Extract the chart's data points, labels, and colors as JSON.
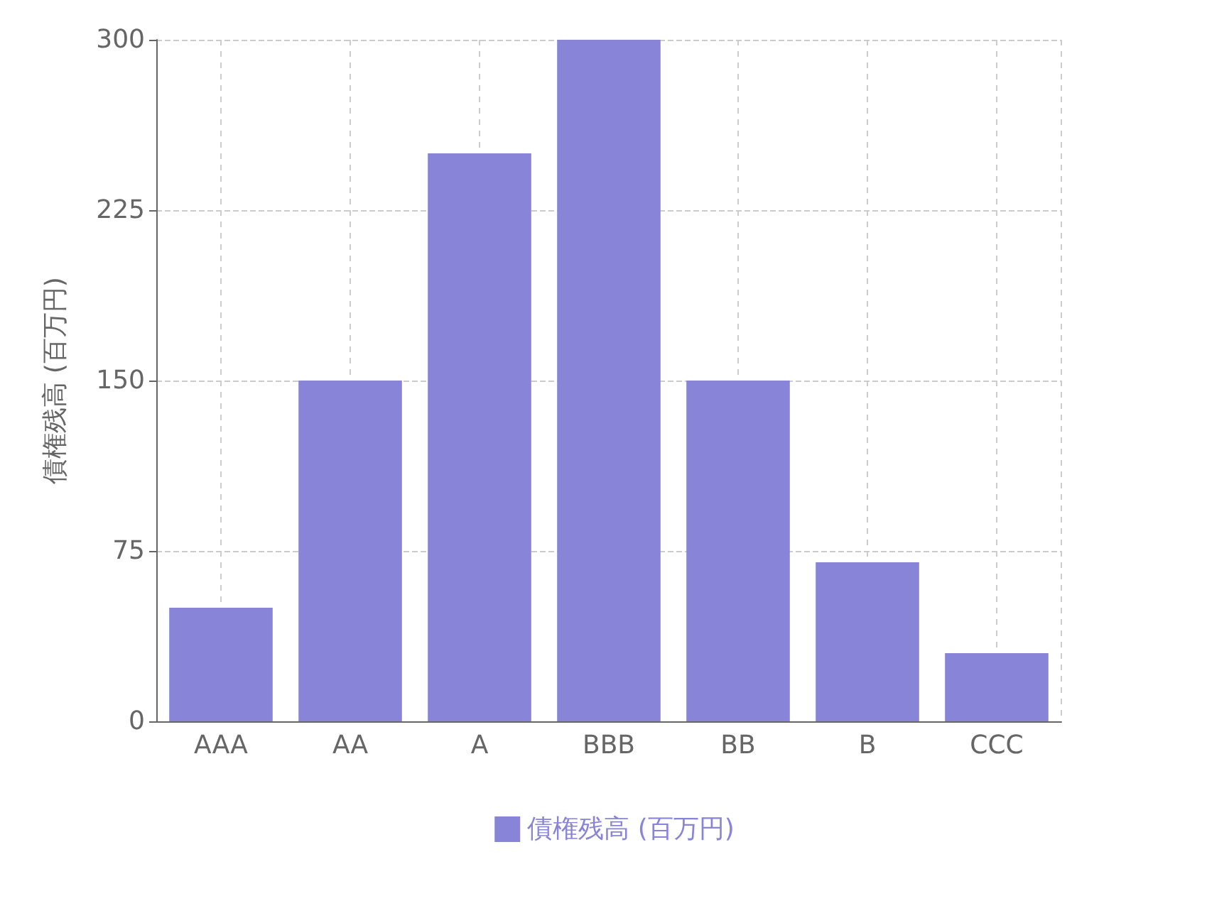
{
  "chart_data": {
    "type": "bar",
    "ylabel": "債権残高 (百万円)",
    "categories": [
      "AAA",
      "AA",
      "A",
      "BBB",
      "BB",
      "B",
      "CCC"
    ],
    "series": [
      {
        "name": "債権残高 (百万円)",
        "color": "#8884d8",
        "values": [
          50,
          150,
          250,
          300,
          150,
          70,
          30
        ]
      }
    ],
    "ylim": [
      0,
      300
    ],
    "yticks": [
      0,
      75,
      150,
      225,
      300
    ],
    "grid": true,
    "legend": "bottom"
  }
}
